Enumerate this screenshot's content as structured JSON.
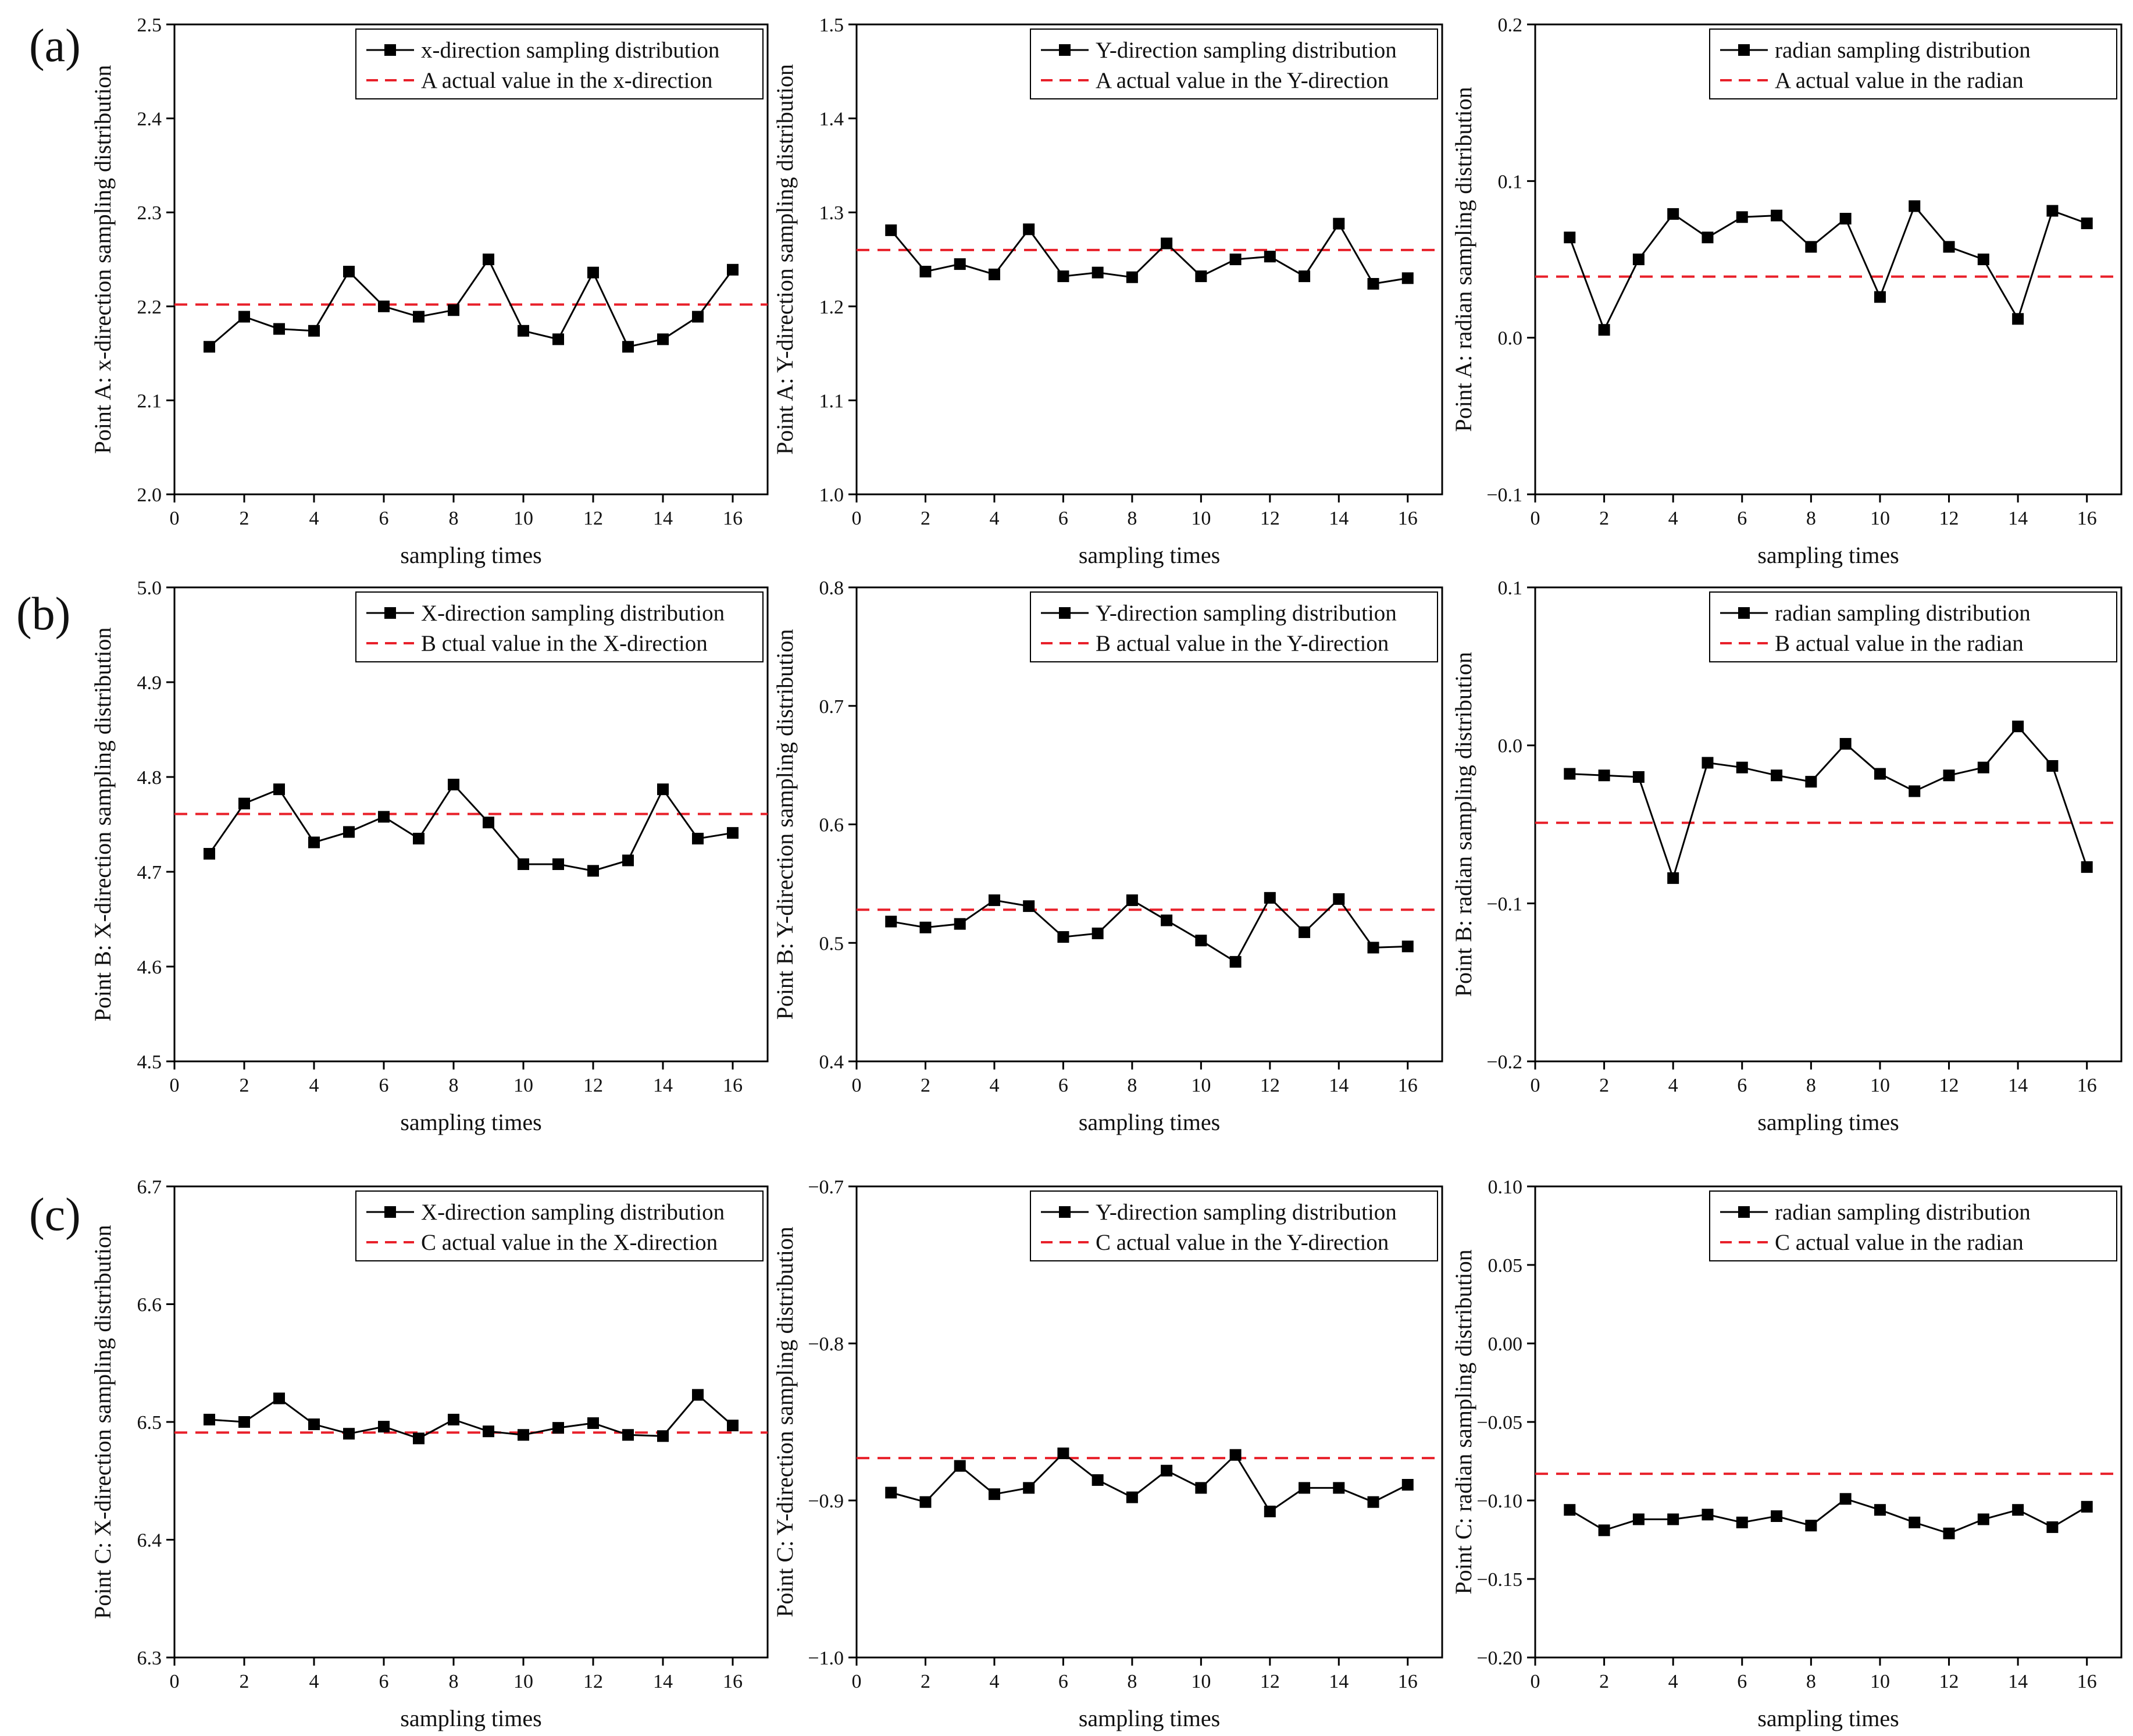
{
  "figure": {
    "row_labels": [
      "(a)",
      "(b)",
      "(c)"
    ]
  },
  "colors": {
    "series": "#000000",
    "reference": "#e8202a",
    "axis": "#000000"
  },
  "chart_data": [
    {
      "type": "line",
      "row": 0,
      "col": 0,
      "xlabel": "sampling times",
      "ylabel": "Point A: x-direction sampling distribution",
      "xlim": [
        0,
        17
      ],
      "ylim": [
        2.0,
        2.5
      ],
      "xticks": [
        0,
        2,
        4,
        6,
        8,
        10,
        12,
        14,
        16
      ],
      "yticks": [
        2.0,
        2.1,
        2.2,
        2.3,
        2.4,
        2.5
      ],
      "ytick_decimals": 1,
      "series": [
        {
          "name": "x-direction sampling distribution",
          "x": [
            1,
            2,
            3,
            4,
            5,
            6,
            7,
            8,
            9,
            10,
            11,
            12,
            13,
            14,
            15,
            16
          ],
          "values": [
            2.157,
            2.189,
            2.176,
            2.174,
            2.237,
            2.2,
            2.189,
            2.196,
            2.25,
            2.174,
            2.165,
            2.236,
            2.157,
            2.165,
            2.189,
            2.239
          ]
        }
      ],
      "reference": {
        "name": "A actual value in the x-direction",
        "value": 2.202
      }
    },
    {
      "type": "line",
      "row": 0,
      "col": 1,
      "xlabel": "sampling times",
      "ylabel": "Point A: Y-direction sampling distribution",
      "xlim": [
        0,
        17
      ],
      "ylim": [
        1.0,
        1.5
      ],
      "xticks": [
        0,
        2,
        4,
        6,
        8,
        10,
        12,
        14,
        16
      ],
      "yticks": [
        1.0,
        1.1,
        1.2,
        1.3,
        1.4,
        1.5
      ],
      "ytick_decimals": 1,
      "series": [
        {
          "name": "Y-direction sampling distribution",
          "x": [
            1,
            2,
            3,
            4,
            5,
            6,
            7,
            8,
            9,
            10,
            11,
            12,
            13,
            14,
            15,
            16
          ],
          "values": [
            1.281,
            1.237,
            1.245,
            1.234,
            1.282,
            1.232,
            1.236,
            1.231,
            1.267,
            1.232,
            1.25,
            1.253,
            1.232,
            1.288,
            1.224,
            1.23
          ]
        }
      ],
      "reference": {
        "name": "A actual value in the Y-direction",
        "value": 1.26
      }
    },
    {
      "type": "line",
      "row": 0,
      "col": 2,
      "xlabel": "sampling times",
      "ylabel": "Point A: radian sampling distribution",
      "xlim": [
        0,
        17
      ],
      "ylim": [
        -0.1,
        0.2
      ],
      "xticks": [
        0,
        2,
        4,
        6,
        8,
        10,
        12,
        14,
        16
      ],
      "yticks": [
        -0.1,
        0.0,
        0.1,
        0.2
      ],
      "ytick_decimals": 1,
      "series": [
        {
          "name": "radian sampling distribution",
          "x": [
            1,
            2,
            3,
            4,
            5,
            6,
            7,
            8,
            9,
            10,
            11,
            12,
            13,
            14,
            15,
            16
          ],
          "values": [
            0.064,
            0.005,
            0.05,
            0.079,
            0.064,
            0.077,
            0.078,
            0.058,
            0.076,
            0.026,
            0.084,
            0.058,
            0.05,
            0.012,
            0.081,
            0.073
          ]
        }
      ],
      "reference": {
        "name": "A actual value in the radian",
        "value": 0.039
      }
    },
    {
      "type": "line",
      "row": 1,
      "col": 0,
      "xlabel": "sampling times",
      "ylabel": "Point B: X-direction sampling distribution",
      "xlim": [
        0,
        17
      ],
      "ylim": [
        4.5,
        5.0
      ],
      "xticks": [
        0,
        2,
        4,
        6,
        8,
        10,
        12,
        14,
        16
      ],
      "yticks": [
        4.5,
        4.6,
        4.7,
        4.8,
        4.9,
        5.0
      ],
      "ytick_decimals": 1,
      "series": [
        {
          "name": "X-direction sampling distribution",
          "x": [
            1,
            2,
            3,
            4,
            5,
            6,
            7,
            8,
            9,
            10,
            11,
            12,
            13,
            14,
            15,
            16
          ],
          "values": [
            4.719,
            4.772,
            4.787,
            4.731,
            4.742,
            4.758,
            4.735,
            4.792,
            4.752,
            4.708,
            4.708,
            4.701,
            4.712,
            4.787,
            4.735,
            4.741
          ]
        }
      ],
      "reference": {
        "name": "B ctual value in the X-direction",
        "value": 4.761
      }
    },
    {
      "type": "line",
      "row": 1,
      "col": 1,
      "xlabel": "sampling times",
      "ylabel": "Point B: Y-direction sampling distribution",
      "xlim": [
        0,
        17
      ],
      "ylim": [
        0.4,
        0.8
      ],
      "xticks": [
        0,
        2,
        4,
        6,
        8,
        10,
        12,
        14,
        16
      ],
      "yticks": [
        0.4,
        0.5,
        0.6,
        0.7,
        0.8
      ],
      "ytick_decimals": 1,
      "series": [
        {
          "name": "Y-direction sampling distribution",
          "x": [
            1,
            2,
            3,
            4,
            5,
            6,
            7,
            8,
            9,
            10,
            11,
            12,
            13,
            14,
            15,
            16
          ],
          "values": [
            0.518,
            0.513,
            0.516,
            0.536,
            0.531,
            0.505,
            0.508,
            0.536,
            0.519,
            0.502,
            0.484,
            0.538,
            0.509,
            0.537,
            0.496,
            0.497
          ]
        }
      ],
      "reference": {
        "name": "B actual value in the Y-direction",
        "value": 0.528
      }
    },
    {
      "type": "line",
      "row": 1,
      "col": 2,
      "xlabel": "sampling times",
      "ylabel": "Point B: radian sampling distribution",
      "xlim": [
        0,
        17
      ],
      "ylim": [
        -0.2,
        0.1
      ],
      "xticks": [
        0,
        2,
        4,
        6,
        8,
        10,
        12,
        14,
        16
      ],
      "yticks": [
        -0.2,
        -0.1,
        0.0,
        0.1
      ],
      "ytick_decimals": 1,
      "series": [
        {
          "name": "radian sampling distribution",
          "x": [
            1,
            2,
            3,
            4,
            5,
            6,
            7,
            8,
            9,
            10,
            11,
            12,
            13,
            14,
            15,
            16
          ],
          "values": [
            -0.018,
            -0.019,
            -0.02,
            -0.084,
            -0.011,
            -0.014,
            -0.019,
            -0.023,
            0.001,
            -0.018,
            -0.029,
            -0.019,
            -0.014,
            0.012,
            -0.013,
            -0.077
          ]
        }
      ],
      "reference": {
        "name": "B actual value in the radian",
        "value": -0.049
      }
    },
    {
      "type": "line",
      "row": 2,
      "col": 0,
      "xlabel": "sampling times",
      "ylabel": "Point C: X-direction sampling distribution",
      "xlim": [
        0,
        17
      ],
      "ylim": [
        6.3,
        6.7
      ],
      "xticks": [
        0,
        2,
        4,
        6,
        8,
        10,
        12,
        14,
        16
      ],
      "yticks": [
        6.3,
        6.4,
        6.5,
        6.6,
        6.7
      ],
      "ytick_decimals": 1,
      "series": [
        {
          "name": "X-direction sampling distribution",
          "x": [
            1,
            2,
            3,
            4,
            5,
            6,
            7,
            8,
            9,
            10,
            11,
            12,
            13,
            14,
            15,
            16
          ],
          "values": [
            6.502,
            6.5,
            6.52,
            6.498,
            6.49,
            6.496,
            6.486,
            6.502,
            6.492,
            6.489,
            6.495,
            6.499,
            6.489,
            6.488,
            6.523,
            6.497
          ]
        }
      ],
      "reference": {
        "name": "C actual value in the X-direction",
        "value": 6.491
      }
    },
    {
      "type": "line",
      "row": 2,
      "col": 1,
      "xlabel": "sampling times",
      "ylabel": "Point C: Y-direction sampling distribution",
      "xlim": [
        0,
        17
      ],
      "ylim": [
        -1.0,
        -0.7
      ],
      "xticks": [
        0,
        2,
        4,
        6,
        8,
        10,
        12,
        14,
        16
      ],
      "yticks": [
        -1.0,
        -0.9,
        -0.8,
        -0.7
      ],
      "ytick_decimals": 1,
      "series": [
        {
          "name": "Y-direction sampling distribution",
          "x": [
            1,
            2,
            3,
            4,
            5,
            6,
            7,
            8,
            9,
            10,
            11,
            12,
            13,
            14,
            15,
            16
          ],
          "values": [
            -0.895,
            -0.901,
            -0.878,
            -0.896,
            -0.892,
            -0.87,
            -0.887,
            -0.898,
            -0.881,
            -0.892,
            -0.871,
            -0.907,
            -0.892,
            -0.892,
            -0.901,
            -0.89
          ]
        }
      ],
      "reference": {
        "name": "C actual value in the Y-direction",
        "value": -0.873
      }
    },
    {
      "type": "line",
      "row": 2,
      "col": 2,
      "xlabel": "sampling times",
      "ylabel": "Point C: radian sampling distribution",
      "xlim": [
        0,
        17
      ],
      "ylim": [
        -0.2,
        0.1
      ],
      "xticks": [
        0,
        2,
        4,
        6,
        8,
        10,
        12,
        14,
        16
      ],
      "yticks": [
        -0.2,
        -0.15,
        -0.1,
        -0.05,
        0.0,
        0.05,
        0.1
      ],
      "ytick_decimals": 2,
      "series": [
        {
          "name": "radian sampling distribution",
          "x": [
            1,
            2,
            3,
            4,
            5,
            6,
            7,
            8,
            9,
            10,
            11,
            12,
            13,
            14,
            15,
            16
          ],
          "values": [
            -0.106,
            -0.119,
            -0.112,
            -0.112,
            -0.109,
            -0.114,
            -0.11,
            -0.116,
            -0.099,
            -0.106,
            -0.114,
            -0.121,
            -0.112,
            -0.106,
            -0.117,
            -0.104
          ]
        }
      ],
      "reference": {
        "name": "C actual value in the radian",
        "value": -0.083
      }
    }
  ]
}
